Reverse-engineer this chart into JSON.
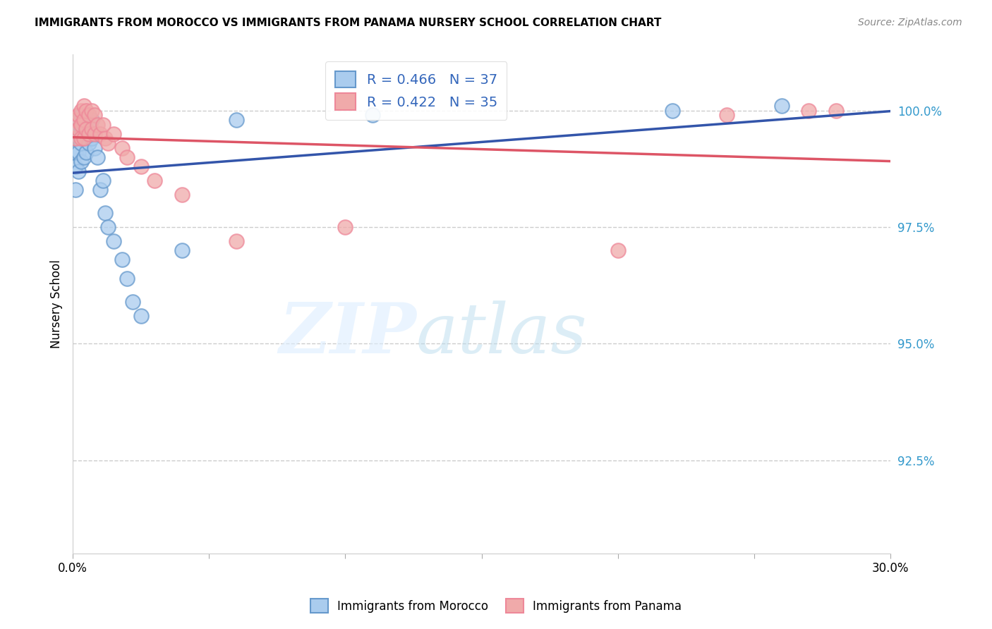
{
  "title": "IMMIGRANTS FROM MOROCCO VS IMMIGRANTS FROM PANAMA NURSERY SCHOOL CORRELATION CHART",
  "source": "Source: ZipAtlas.com",
  "ylabel": "Nursery School",
  "ytick_labels": [
    "100.0%",
    "97.5%",
    "95.0%",
    "92.5%"
  ],
  "ytick_values": [
    1.0,
    0.975,
    0.95,
    0.925
  ],
  "xlim": [
    0.0,
    0.3
  ],
  "ylim": [
    0.905,
    1.012
  ],
  "legend1_label": "R = 0.466   N = 37",
  "legend2_label": "R = 0.422   N = 35",
  "legend_color1": "#6699cc",
  "legend_color2": "#ee8899",
  "line1_color": "#3355aa",
  "line2_color": "#dd5566",
  "scatter1_color": "#aaccee",
  "scatter2_color": "#f0aaaa",
  "morocco_x": [
    0.001,
    0.001,
    0.001,
    0.002,
    0.002,
    0.002,
    0.002,
    0.003,
    0.003,
    0.003,
    0.003,
    0.004,
    0.004,
    0.004,
    0.005,
    0.005,
    0.005,
    0.006,
    0.006,
    0.007,
    0.007,
    0.008,
    0.009,
    0.01,
    0.011,
    0.012,
    0.013,
    0.015,
    0.018,
    0.02,
    0.022,
    0.025,
    0.04,
    0.06,
    0.11,
    0.22,
    0.26
  ],
  "morocco_y": [
    0.991,
    0.988,
    0.983,
    0.998,
    0.994,
    0.991,
    0.987,
    0.999,
    0.996,
    0.993,
    0.989,
    0.997,
    0.994,
    0.99,
    0.998,
    0.995,
    0.991,
    0.997,
    0.993,
    0.998,
    0.994,
    0.992,
    0.99,
    0.983,
    0.985,
    0.978,
    0.975,
    0.972,
    0.968,
    0.964,
    0.959,
    0.956,
    0.97,
    0.998,
    0.999,
    1.0,
    1.001
  ],
  "panama_x": [
    0.001,
    0.001,
    0.002,
    0.002,
    0.003,
    0.003,
    0.003,
    0.004,
    0.004,
    0.004,
    0.005,
    0.005,
    0.006,
    0.006,
    0.007,
    0.007,
    0.008,
    0.008,
    0.009,
    0.01,
    0.011,
    0.012,
    0.013,
    0.015,
    0.018,
    0.02,
    0.025,
    0.03,
    0.04,
    0.06,
    0.1,
    0.2,
    0.24,
    0.27,
    0.28
  ],
  "panama_y": [
    0.998,
    0.994,
    0.999,
    0.996,
    1.0,
    0.997,
    0.994,
    1.001,
    0.998,
    0.994,
    1.0,
    0.996,
    0.999,
    0.995,
    1.0,
    0.996,
    0.999,
    0.995,
    0.997,
    0.995,
    0.997,
    0.994,
    0.993,
    0.995,
    0.992,
    0.99,
    0.988,
    0.985,
    0.982,
    0.972,
    0.975,
    0.97,
    0.999,
    1.0,
    1.0
  ]
}
